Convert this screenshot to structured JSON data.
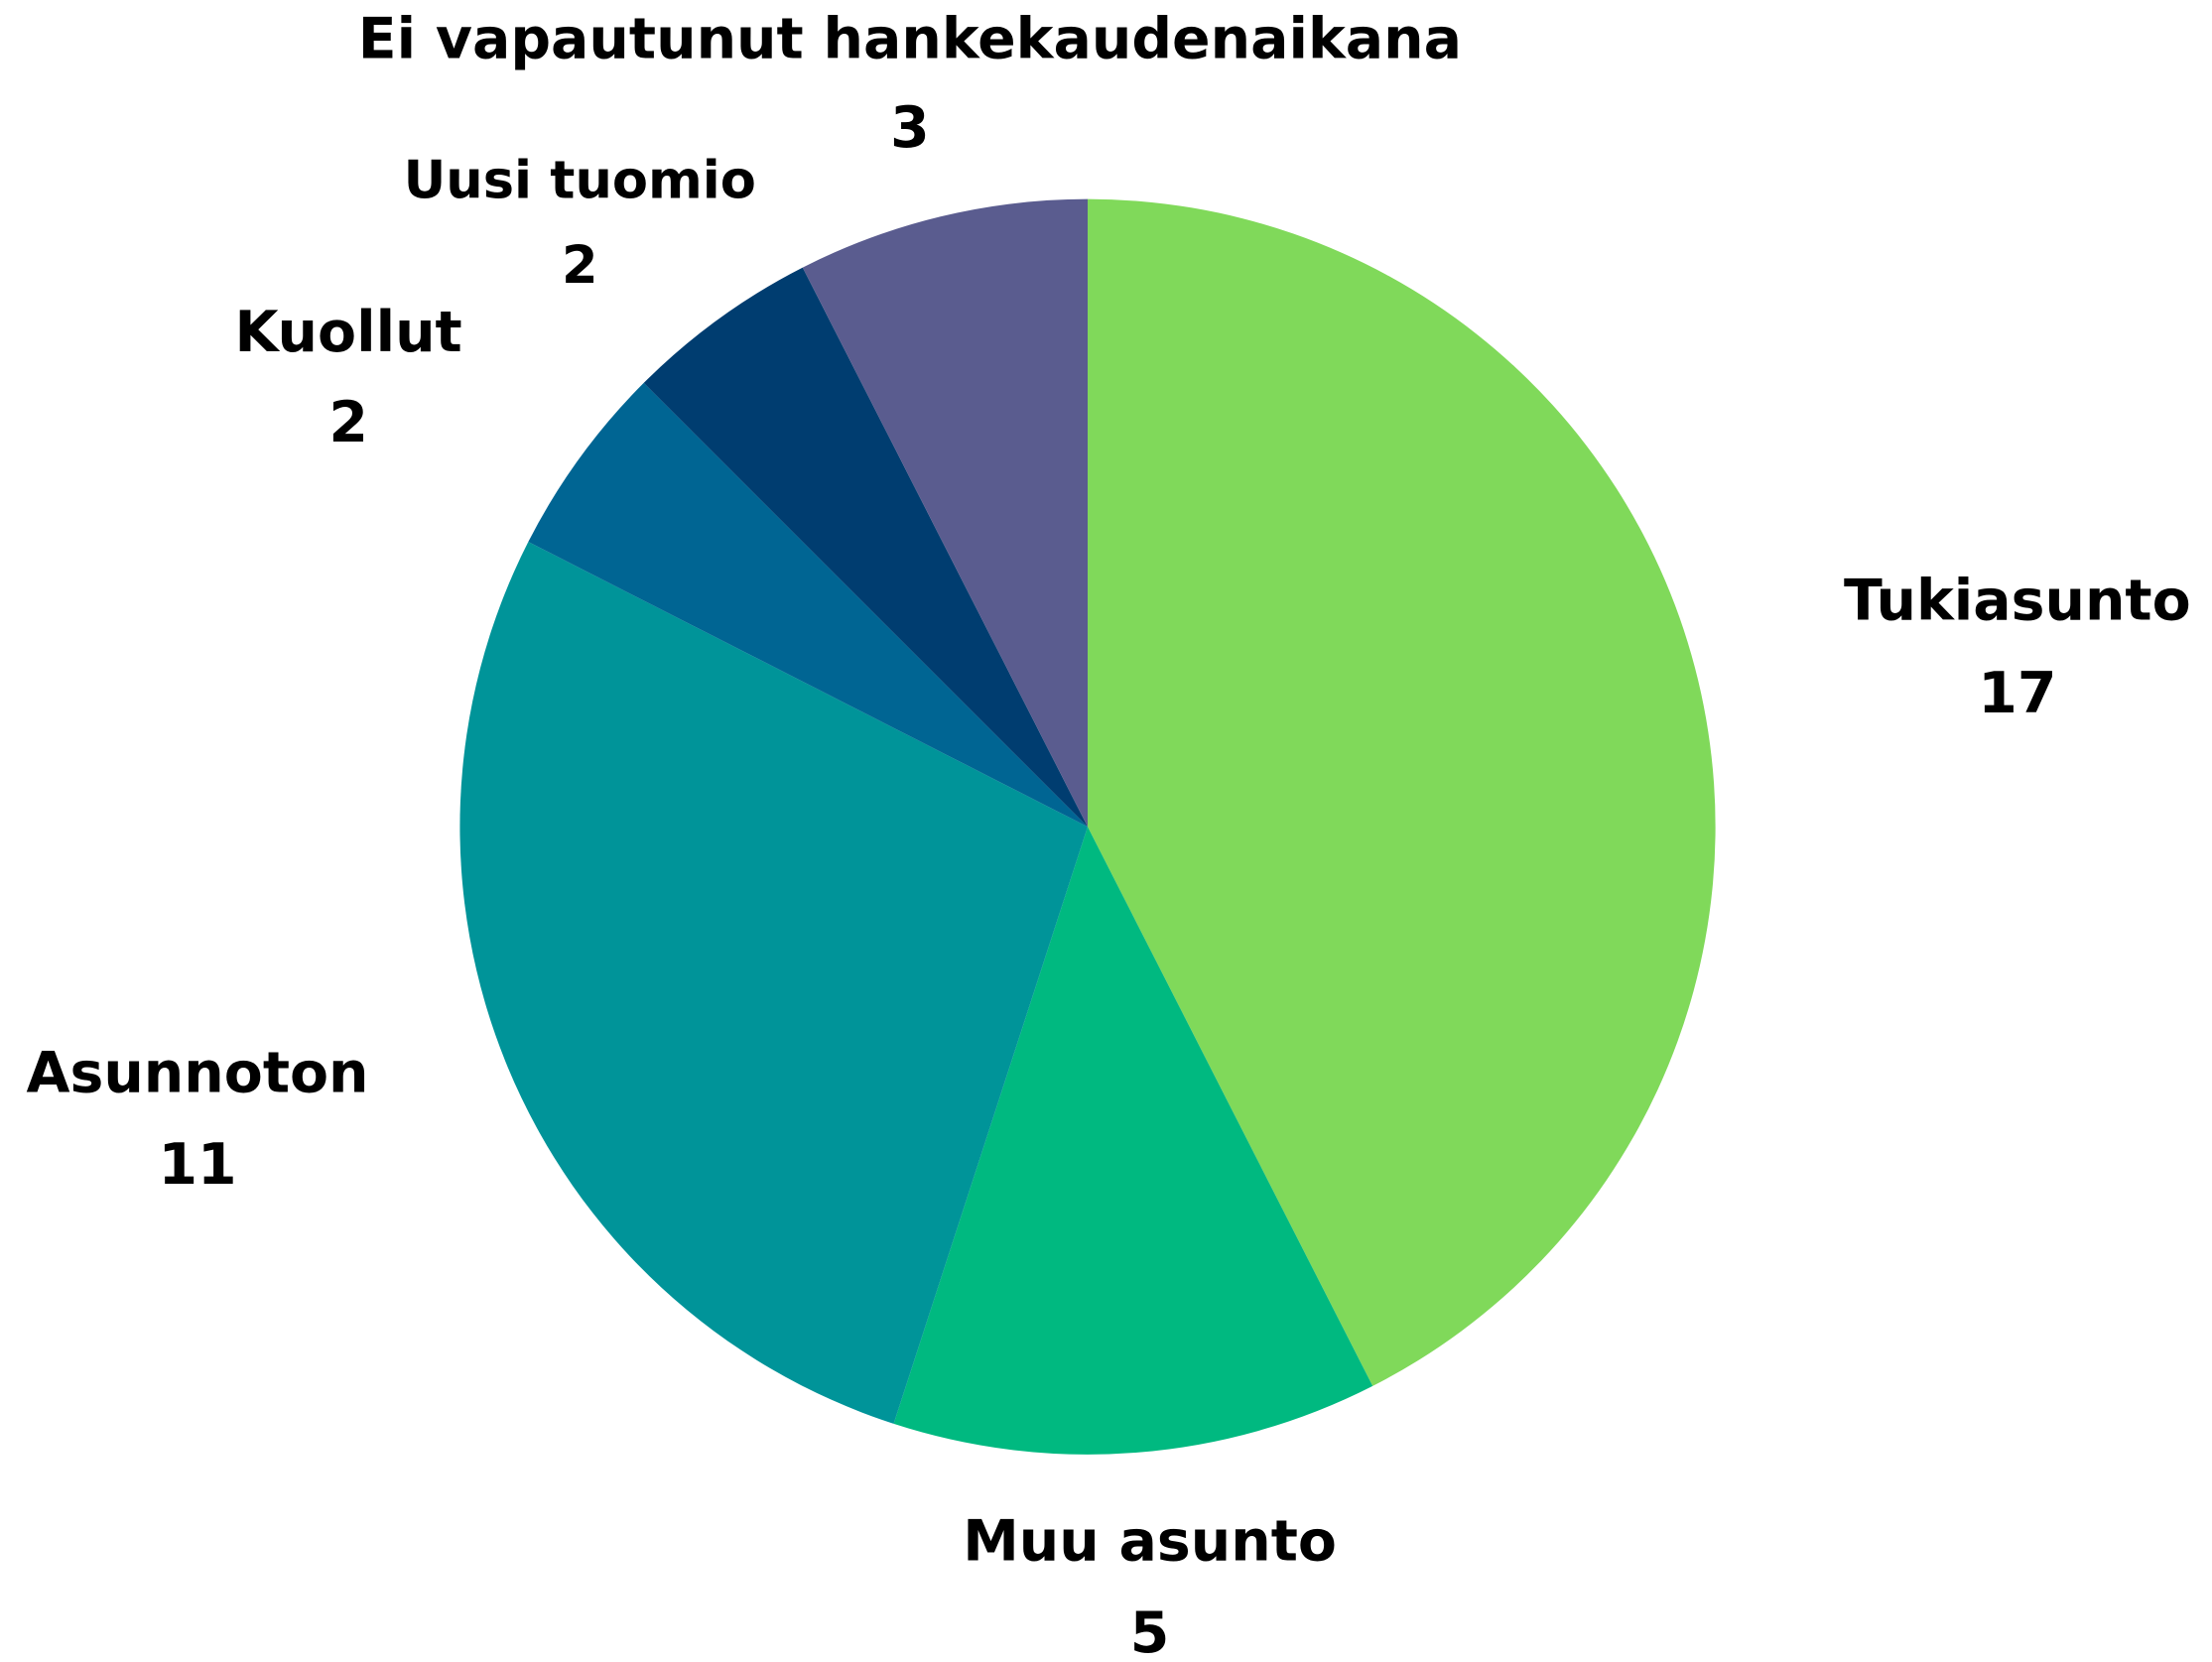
{
  "chart_data": {
    "type": "pie",
    "categories": [
      "Tukiasunto",
      "Muu asunto",
      "Asunnoton",
      "Kuollut",
      "Uusi tuomio",
      "Ei vapautunut hankekaudenaikana"
    ],
    "values": [
      17,
      5,
      11,
      2,
      2,
      3
    ],
    "colors": [
      "#80d95a",
      "#00b980",
      "#009499",
      "#006593",
      "#003d70",
      "#5a5c8f"
    ]
  }
}
